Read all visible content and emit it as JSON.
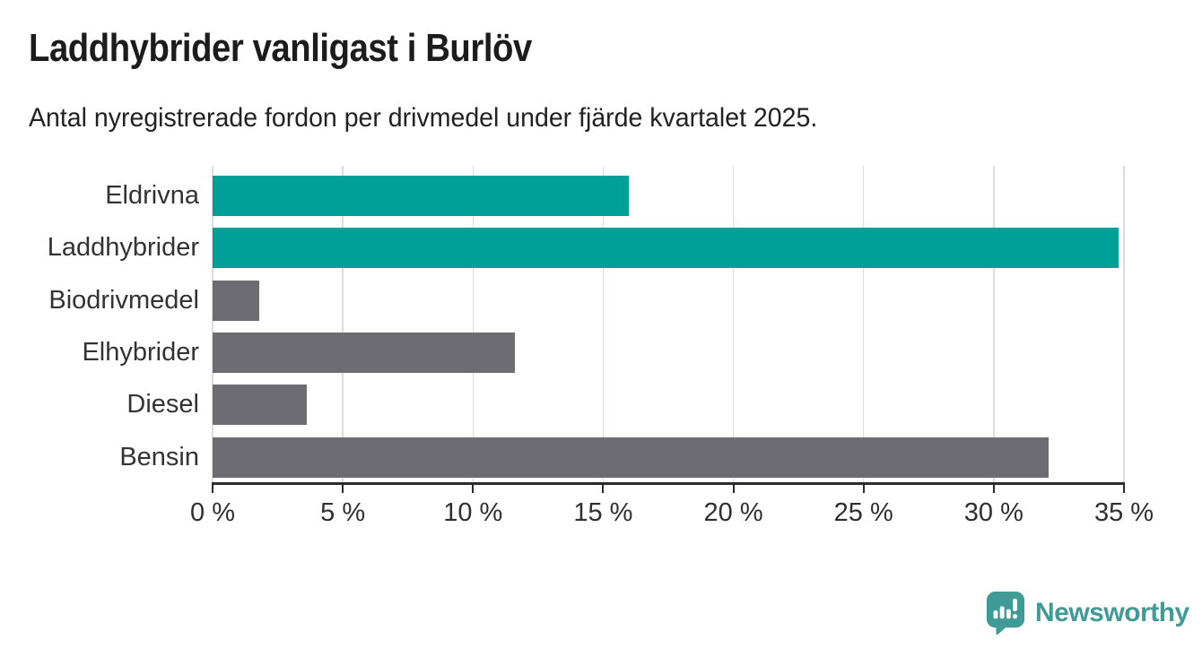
{
  "header": {
    "title": "Laddhybrider vanligast i Burlöv",
    "subtitle": "Antal nyregistrerade fordon per drivmedel under fjärde kvartalet 2025."
  },
  "chart_data": {
    "type": "bar",
    "orientation": "horizontal",
    "title": "Laddhybrider vanligast i Burlöv",
    "subtitle": "Antal nyregistrerade fordon per drivmedel under fjärde kvartalet 2025.",
    "categories": [
      "Eldrivna",
      "Laddhybrider",
      "Biodrivmedel",
      "Elhybrider",
      "Diesel",
      "Bensin"
    ],
    "values": [
      16.0,
      34.8,
      1.8,
      11.6,
      3.6,
      32.1
    ],
    "unit": "%",
    "bar_colors": [
      "#00a099",
      "#00a099",
      "#6c6c72",
      "#6c6c72",
      "#6c6c72",
      "#6c6c72"
    ],
    "highlight_color": "#00a099",
    "default_color": "#6c6c72",
    "xlabel": "",
    "ylabel": "",
    "xlim": [
      0,
      35
    ],
    "x_ticks": [
      0,
      5,
      10,
      15,
      20,
      25,
      30,
      35
    ],
    "x_tick_labels": [
      "0 %",
      "5 %",
      "10 %",
      "15 %",
      "20 %",
      "25 %",
      "30 %",
      "35 %"
    ],
    "grid": "vertical-gridlines-on",
    "legend": "none"
  },
  "footer": {
    "brand_label": "Newsworthy",
    "brand_color": "#3f9b95",
    "logo_icon": "speech-bubble-bar-chart-icon"
  },
  "colors": {
    "background": "#ffffff",
    "axis": "#2b2b2b",
    "gridline": "#dcdcdc",
    "title_text": "#1c1c1c",
    "label_text": "#333333"
  }
}
